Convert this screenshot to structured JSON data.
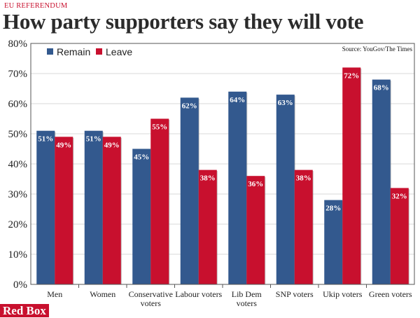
{
  "kicker": "EU REFERENDUM",
  "title": "How party supporters say they will vote",
  "source": "Source: YouGov/The Times",
  "brand": "Red Box",
  "colors": {
    "remain": "#33598e",
    "leave": "#c8102e",
    "grid": "#d9d9d9",
    "frame": "#555555"
  },
  "chart_data": {
    "type": "bar",
    "categories": [
      [
        "Men"
      ],
      [
        "Women"
      ],
      [
        "Conservative",
        "voters"
      ],
      [
        "Labour voters"
      ],
      [
        "Lib Dem",
        "voters"
      ],
      [
        "SNP voters"
      ],
      [
        "Ukip voters"
      ],
      [
        "Green voters"
      ]
    ],
    "series": [
      {
        "name": "Remain",
        "values": [
          51,
          51,
          45,
          62,
          64,
          63,
          28,
          68
        ],
        "labels": [
          "51%",
          "51%",
          "45%",
          "62%",
          "64%",
          "63%",
          "28%",
          "68%"
        ]
      },
      {
        "name": "Leave",
        "values": [
          49,
          49,
          55,
          38,
          36,
          38,
          72,
          32
        ],
        "labels": [
          "49%",
          "49%",
          "55%",
          "38%",
          "36%",
          "38%",
          "72%",
          "32%"
        ]
      }
    ],
    "ylim": [
      0,
      80
    ],
    "yticks": [
      "0%",
      "10%",
      "20%",
      "30%",
      "40%",
      "50%",
      "60%",
      "70%",
      "80%"
    ],
    "grid": true,
    "legend": "top-left"
  }
}
